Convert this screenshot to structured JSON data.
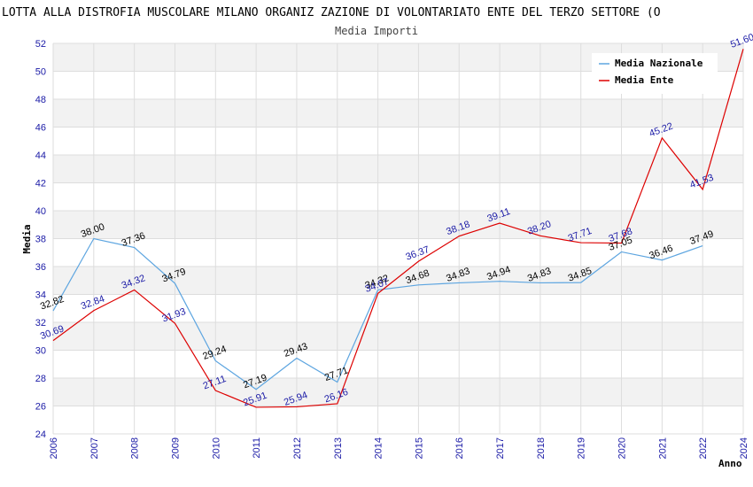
{
  "chart_data": {
    "type": "line",
    "title": "LOTTA ALLA DISTROFIA MUSCOLARE MILANO ORGANIZ ZAZIONE DI VOLONTARIATO ENTE DEL TERZO SETTORE (O",
    "subtitle": "Media Importi",
    "xlabel": "Anno",
    "ylabel": "Media",
    "ylim": [
      24,
      52
    ],
    "yticks": [
      24,
      26,
      28,
      30,
      32,
      34,
      36,
      38,
      40,
      42,
      44,
      46,
      48,
      50,
      52
    ],
    "x": [
      "2006",
      "2007",
      "2008",
      "2009",
      "2010",
      "2011",
      "2012",
      "2013",
      "2014",
      "2015",
      "2016",
      "2017",
      "2018",
      "2019",
      "2020",
      "2021",
      "2022",
      "2024"
    ],
    "grid": true,
    "legend_position": "top-right",
    "series": [
      {
        "name": "Media Nazionale",
        "color": "#5da5e0",
        "label_color": "#000000",
        "values": [
          32.82,
          38.0,
          37.36,
          34.79,
          29.24,
          27.19,
          29.43,
          27.71,
          34.32,
          34.68,
          34.83,
          34.94,
          34.83,
          34.85,
          37.05,
          36.46,
          37.49,
          null
        ],
        "labels": [
          "32.82",
          "38.00",
          "37.36",
          "34.79",
          "29.24",
          "27.19",
          "29.43",
          "27.71",
          "34.32",
          "34.68",
          "34.83",
          "34.94",
          "34.83",
          "34.85",
          "37.05",
          "36.46",
          "37.49",
          ""
        ]
      },
      {
        "name": "Media Ente",
        "color": "#dd0000",
        "label_color": "#1a1aa6",
        "values": [
          30.69,
          32.84,
          34.32,
          31.93,
          27.11,
          25.91,
          25.94,
          26.16,
          34.07,
          36.37,
          38.18,
          39.11,
          38.2,
          37.71,
          37.68,
          45.22,
          41.53,
          51.6
        ],
        "labels": [
          "30.69",
          "32.84",
          "34.32",
          "31.93",
          "27.11",
          "25.91",
          "25.94",
          "26.16",
          "34.07",
          "36.37",
          "38.18",
          "39.11",
          "38.20",
          "37.71",
          "37.68",
          "45.22",
          "41.53",
          "51.60"
        ]
      }
    ]
  }
}
